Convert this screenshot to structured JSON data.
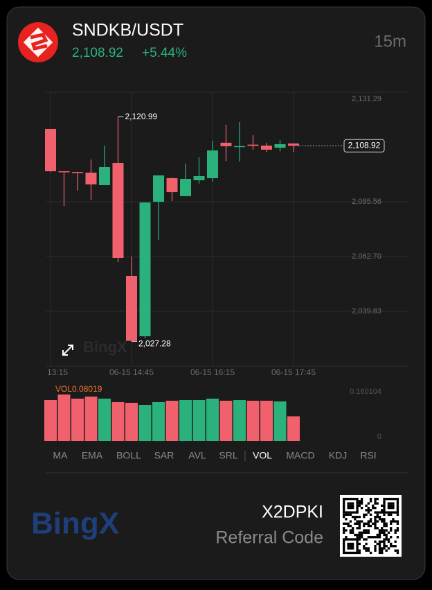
{
  "header": {
    "symbol": "SNDKB/USDT",
    "price": "2,108.92",
    "change": "+5.44%",
    "interval": "15m"
  },
  "chart_data": [
    {
      "type": "candlestick",
      "categories": [
        "13:15",
        null,
        null,
        null,
        null,
        null,
        "06-15 14:45",
        null,
        null,
        null,
        null,
        null,
        "06-15 16:15",
        null,
        null,
        null,
        null,
        null,
        "06-15 17:45"
      ],
      "open": [
        2115.96,
        2098.3,
        2098.0,
        2097.72,
        2092.51,
        2101.77,
        2054.6,
        2029.41,
        2085.56,
        2095.4,
        2087.9,
        2094.54,
        2095.4,
        2110.2,
        2108.5,
        2109.4,
        2109.0,
        2108.1,
        2109.9
      ],
      "high": [
        2116.0,
        2098.3,
        2098.0,
        2103.22,
        2109.0,
        2120.99,
        2062.7,
        2085.3,
        2096.6,
        2095.7,
        2101.5,
        2104.1,
        2111.04,
        2117.7,
        2118.85,
        2113.35,
        2110.2,
        2111.3,
        2109.9
      ],
      "low": [
        2098.0,
        2083.83,
        2090.2,
        2086.43,
        2092.5,
        2060.39,
        2027.28,
        2028.55,
        2069.65,
        2085.85,
        2087.9,
        2093.1,
        2093.96,
        2102.6,
        2102.35,
        2107.27,
        2106.4,
        2106.6,
        2106.4
      ],
      "close": [
        2098.3,
        2098.0,
        2097.7,
        2092.8,
        2100.04,
        2062.12,
        2027.5,
        2085.27,
        2096.56,
        2089.6,
        2095.1,
        2096.27,
        2106.99,
        2108.75,
        2108.8,
        2108.9,
        2107.3,
        2109.6,
        2108.92
      ],
      "up_color": "#2bb27c",
      "down_color": "#f0616d",
      "ylim": [
        2016.97,
        2131.29
      ],
      "yticks": [
        {
          "value": 2131.29,
          "label": "2,131.29"
        },
        {
          "value": 2085.56,
          "label": "2,085.56"
        },
        {
          "value": 2062.7,
          "label": "2,062.70"
        },
        {
          "value": 2039.83,
          "label": "2,039.83"
        }
      ],
      "extremes": [
        {
          "value": 2120.99,
          "label": "2,120.99"
        },
        {
          "value": 2027.28,
          "label": "2,027.28"
        }
      ],
      "last_price": {
        "value": 2108.92,
        "label": "2,108.92"
      },
      "watermark": "BingX",
      "grid": true
    },
    {
      "type": "bar",
      "label": "VOL0.08019",
      "values": [
        0.133,
        0.151,
        0.1376,
        0.1443,
        0.1376,
        0.1263,
        0.124,
        0.1173,
        0.1263,
        0.1308,
        0.133,
        0.133,
        0.1376,
        0.1308,
        0.133,
        0.1308,
        0.1308,
        0.1285,
        0.08019
      ],
      "ylim": [
        0,
        0.160104
      ],
      "yticks": [
        0.160104,
        0
      ]
    }
  ],
  "indicators": [
    "MA",
    "EMA",
    "BOLL",
    "SAR",
    "AVL",
    "SRL",
    "VOL",
    "MACD",
    "KDJ",
    "RSI"
  ],
  "active_indicator": "VOL",
  "footer": {
    "brand": "BingX",
    "code": "X2DPKI",
    "code_label": "Referral Code"
  }
}
